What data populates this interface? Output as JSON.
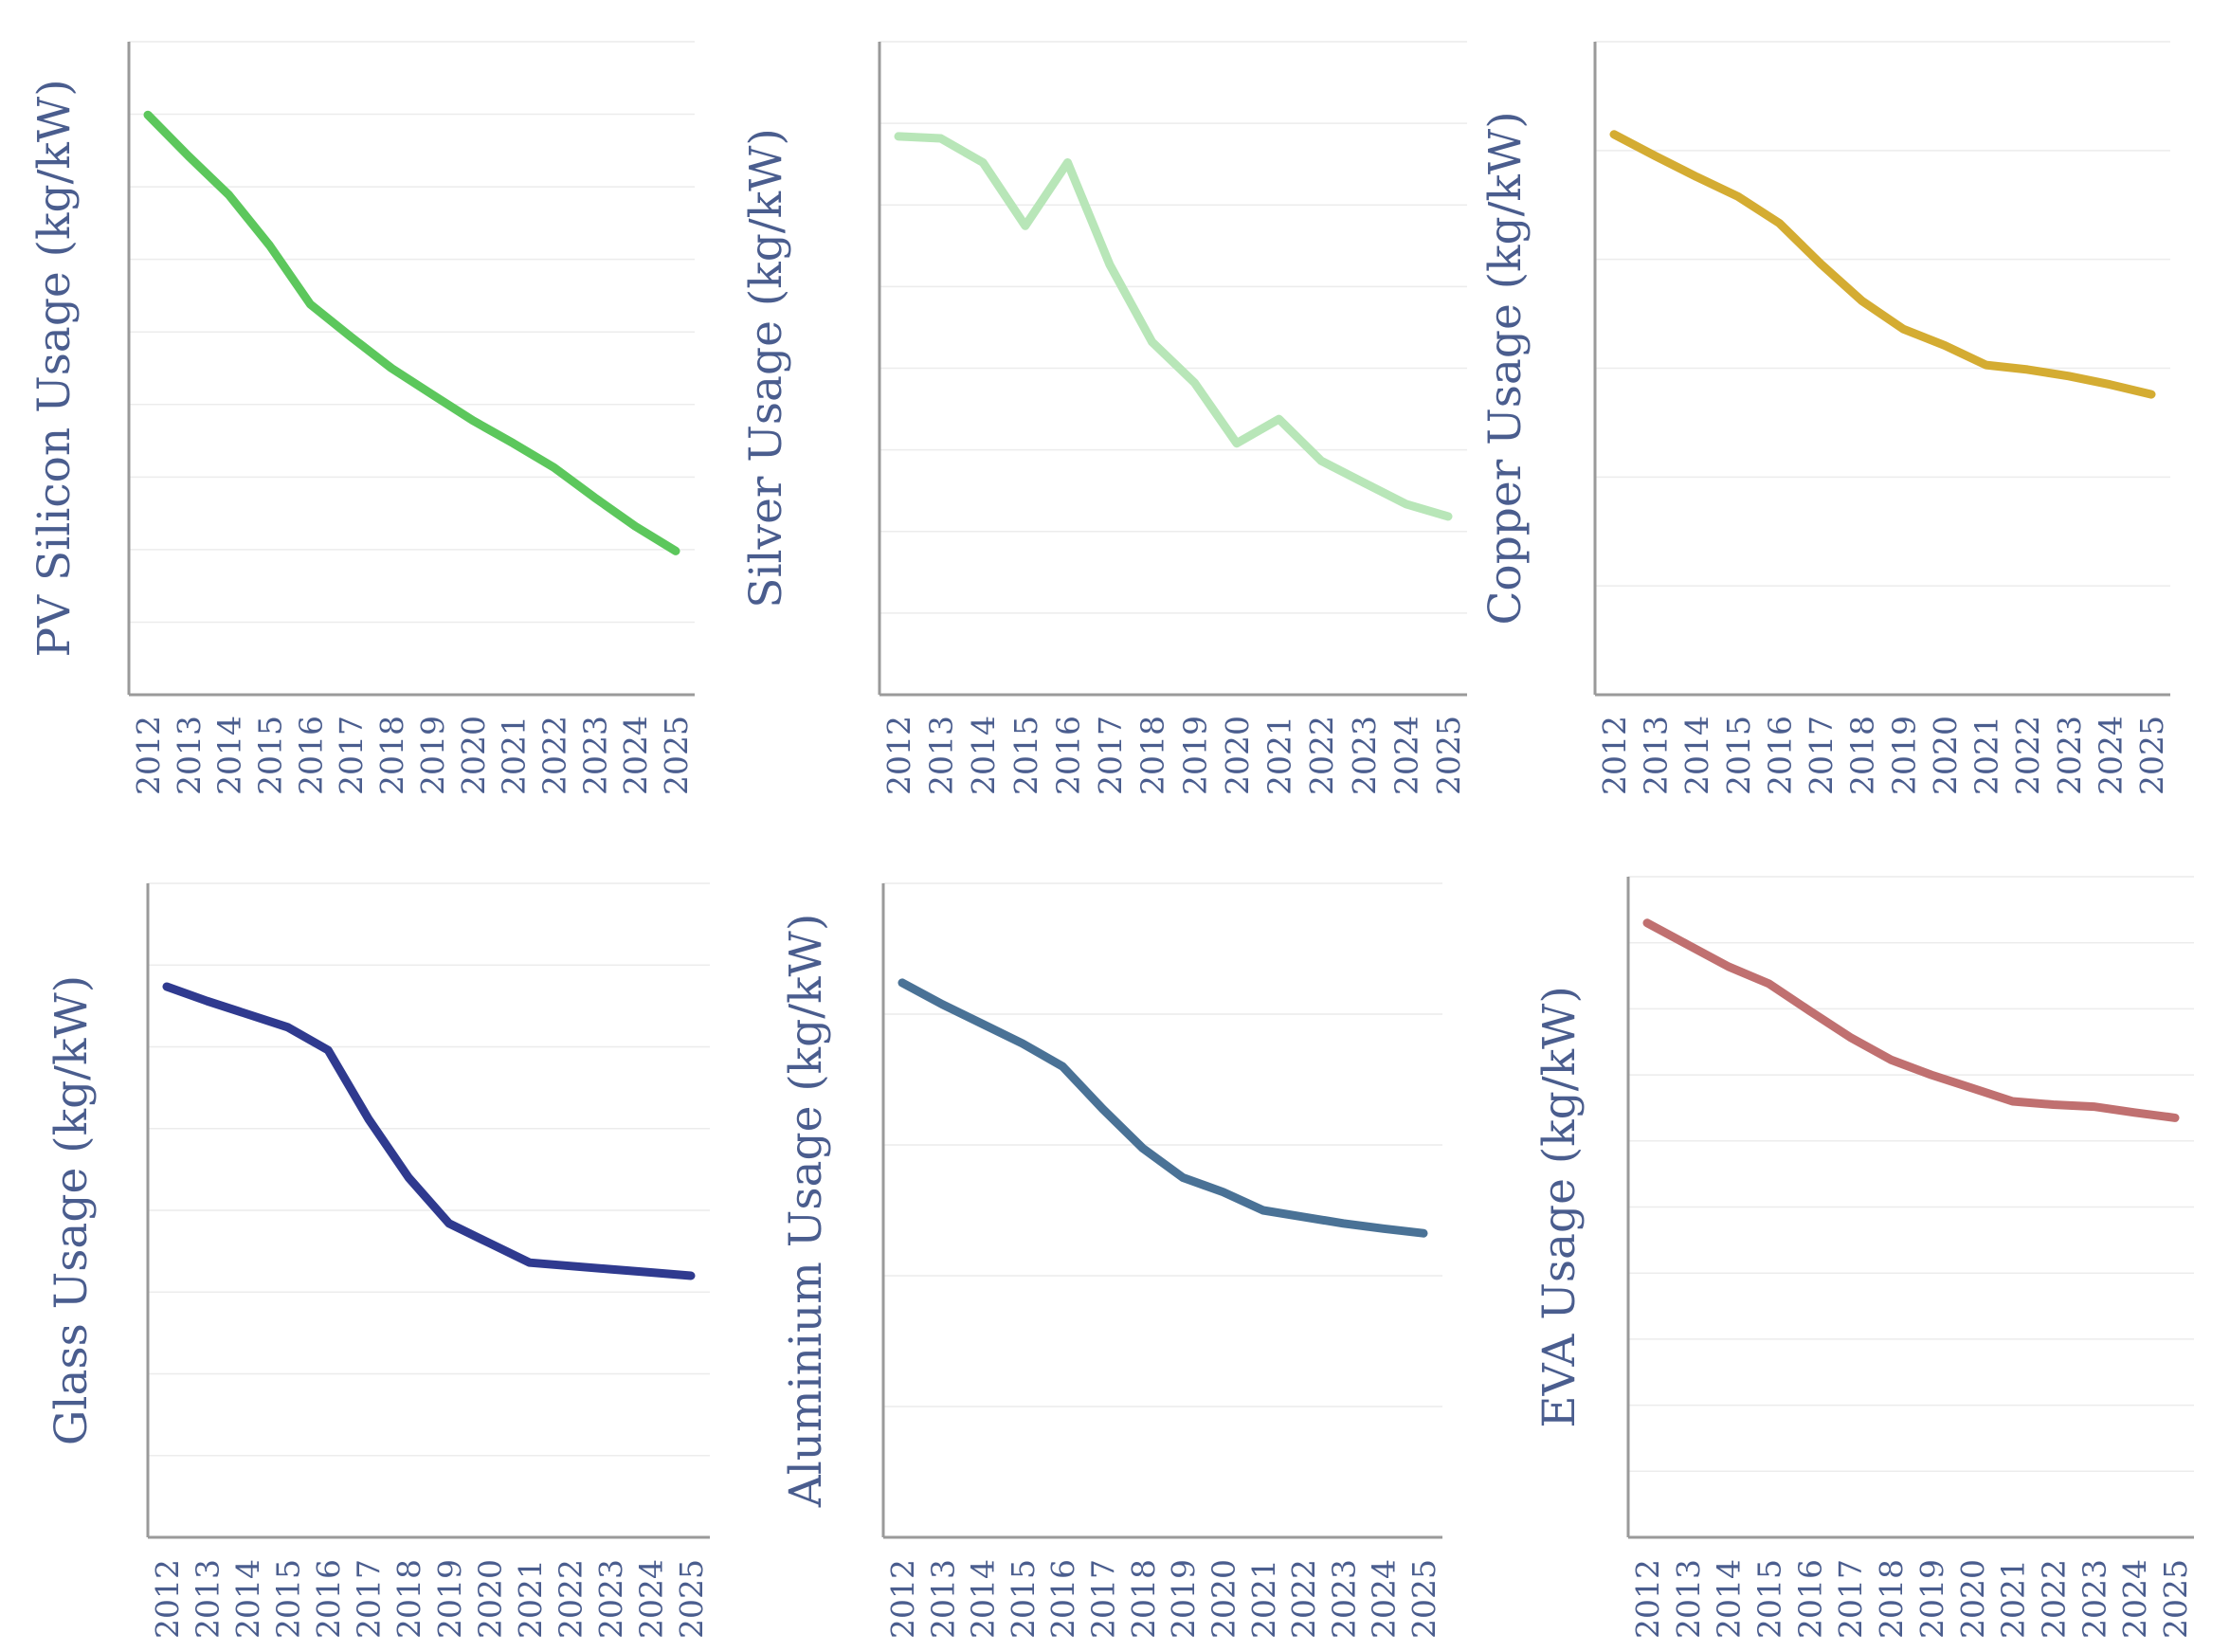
{
  "chart_data": [
    {
      "type": "line",
      "ylabel": "PV Silicon Usage (kg/kW)",
      "color": "#5cc75c",
      "x": [
        "2012",
        "2013",
        "2014",
        "2015",
        "2016",
        "2017",
        "2018",
        "2019",
        "2020",
        "2021",
        "2022",
        "2023",
        "2024",
        "2025"
      ],
      "values": [
        0.888,
        0.825,
        0.765,
        0.688,
        0.598,
        0.548,
        0.5,
        0.46,
        0.42,
        0.385,
        0.348,
        0.302,
        0.258,
        0.22
      ],
      "ylim": [
        0,
        1
      ],
      "grid": true
    },
    {
      "type": "line",
      "ylabel": "Silver Usage (kg/kW)",
      "color": "#b8e6b8",
      "x": [
        "2012",
        "2013",
        "2014",
        "2015",
        "2016",
        "2017",
        "2018",
        "2019",
        "2020",
        "2021",
        "2022",
        "2023",
        "2024",
        "2025"
      ],
      "values": [
        0.855,
        0.852,
        0.815,
        0.718,
        0.815,
        0.658,
        0.54,
        0.478,
        0.385,
        0.422,
        0.358,
        0.325,
        0.292,
        0.273
      ],
      "ylim": [
        0,
        1
      ],
      "grid": true
    },
    {
      "type": "line",
      "ylabel": "Copper Usage (kg/kW)",
      "color": "#d4ac32",
      "x": [
        "2012",
        "2013",
        "2014",
        "2015",
        "2016",
        "2017",
        "2018",
        "2019",
        "2020",
        "2021",
        "2022",
        "2023",
        "2024",
        "2025"
      ],
      "values": [
        0.858,
        0.825,
        0.793,
        0.763,
        0.722,
        0.66,
        0.603,
        0.56,
        0.535,
        0.505,
        0.498,
        0.488,
        0.475,
        0.46
      ],
      "ylim": [
        0,
        1
      ],
      "grid": true
    },
    {
      "type": "line",
      "ylabel": "Glass Usage (kg/kW)",
      "color": "#2f3a8f",
      "x": [
        "2012",
        "2013",
        "2014",
        "2015",
        "2016",
        "2017",
        "2018",
        "2019",
        "2020",
        "2021",
        "2022",
        "2023",
        "2024",
        "2025"
      ],
      "values": [
        0.842,
        0.82,
        0.8,
        0.78,
        0.745,
        0.64,
        0.55,
        0.48,
        0.45,
        0.42,
        0.415,
        0.41,
        0.405,
        0.4
      ],
      "ylim": [
        0,
        1
      ],
      "grid": true
    },
    {
      "type": "line",
      "ylabel": "Aluminium Usage (kg/kW)",
      "color": "#4a7296",
      "x": [
        "2012",
        "2013",
        "2014",
        "2015",
        "2016",
        "2017",
        "2018",
        "2019",
        "2020",
        "2021",
        "2022",
        "2023",
        "2024",
        "2025"
      ],
      "values": [
        0.848,
        0.815,
        0.785,
        0.755,
        0.72,
        0.655,
        0.595,
        0.55,
        0.528,
        0.5,
        0.49,
        0.48,
        0.472,
        0.465
      ],
      "ylim": [
        0,
        1
      ],
      "grid": true
    },
    {
      "type": "line",
      "ylabel": "EVA Usage (kg/kW)",
      "color": "#c07070",
      "x": [
        "2012",
        "2013",
        "2014",
        "2015",
        "2016",
        "2017",
        "2018",
        "2019",
        "2020",
        "2021",
        "2022",
        "2023",
        "2024",
        "2025"
      ],
      "values": [
        0.93,
        0.897,
        0.864,
        0.838,
        0.797,
        0.757,
        0.723,
        0.7,
        0.68,
        0.66,
        0.655,
        0.652,
        0.643,
        0.635
      ],
      "ylim": [
        0,
        1
      ],
      "grid": true
    }
  ]
}
